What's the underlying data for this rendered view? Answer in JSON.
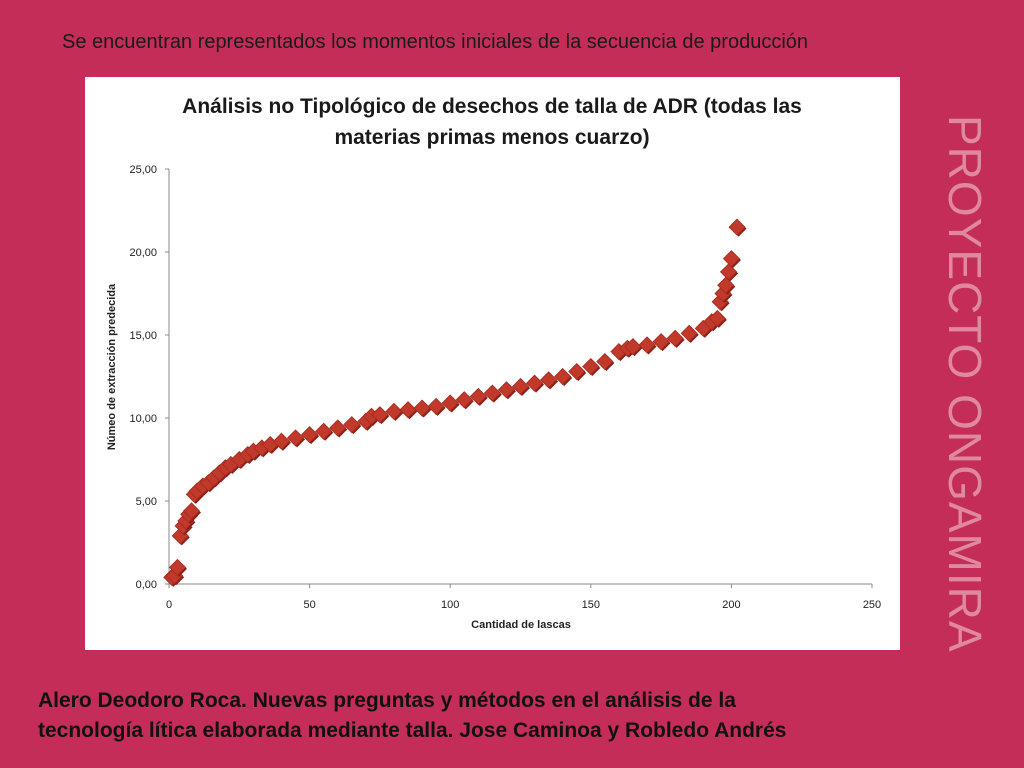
{
  "slide": {
    "heading": "Se encuentran representados los momentos iniciales de la secuencia de producción",
    "watermark": "PROYECTO  ONGAMIRA",
    "caption_line1": "Alero Deodoro Roca. Nuevas preguntas y métodos en el análisis de la",
    "caption_line2": "tecnología lítica elaborada mediante talla. Jose Caminoa y Robledo Andrés"
  },
  "colors": {
    "background": "#c42d57",
    "marker": "#c0392b",
    "marker_shadow": "#8e1f16"
  },
  "chart_data": {
    "type": "scatter",
    "title_line1": "Análisis no Tipológico de desechos de talla de ADR (todas las",
    "title_line2": "materias primas menos cuarzo)",
    "xlabel": "Cantidad de  lascas",
    "ylabel": "Númeo de extracción predecida",
    "xlim": [
      0,
      250
    ],
    "ylim": [
      0,
      25
    ],
    "x_ticks": [
      0,
      50,
      100,
      150,
      200,
      250
    ],
    "x_tick_labels": [
      "0",
      "50",
      "100",
      "150",
      "200",
      "250"
    ],
    "y_ticks": [
      0,
      5,
      10,
      15,
      20,
      25
    ],
    "y_tick_labels": [
      "0,00",
      "5,00",
      "10,00",
      "15,00",
      "20,00",
      "25,00"
    ],
    "grid": false,
    "legend": "none",
    "marker": "diamond",
    "x": [
      1,
      2,
      3,
      4,
      5,
      6,
      7,
      8,
      9,
      10,
      12,
      14,
      16,
      18,
      20,
      22,
      25,
      28,
      30,
      33,
      36,
      40,
      45,
      50,
      55,
      60,
      65,
      70,
      72,
      75,
      80,
      85,
      90,
      95,
      100,
      105,
      110,
      115,
      120,
      125,
      130,
      135,
      140,
      145,
      150,
      155,
      160,
      163,
      165,
      170,
      175,
      180,
      185,
      190,
      193,
      195,
      196,
      197,
      198,
      199,
      200,
      202
    ],
    "y": [
      0.4,
      0.5,
      1.0,
      2.9,
      3.5,
      3.8,
      4.2,
      4.4,
      5.4,
      5.6,
      5.9,
      6.1,
      6.4,
      6.7,
      7.0,
      7.2,
      7.5,
      7.8,
      8.0,
      8.2,
      8.4,
      8.6,
      8.8,
      9.0,
      9.2,
      9.4,
      9.6,
      9.8,
      10.1,
      10.2,
      10.4,
      10.5,
      10.6,
      10.7,
      10.9,
      11.1,
      11.3,
      11.5,
      11.7,
      11.9,
      12.1,
      12.3,
      12.5,
      12.8,
      13.1,
      13.4,
      14.0,
      14.2,
      14.3,
      14.4,
      14.6,
      14.8,
      15.1,
      15.4,
      15.8,
      16.0,
      17.0,
      17.5,
      18.0,
      18.8,
      19.6,
      21.5
    ]
  }
}
